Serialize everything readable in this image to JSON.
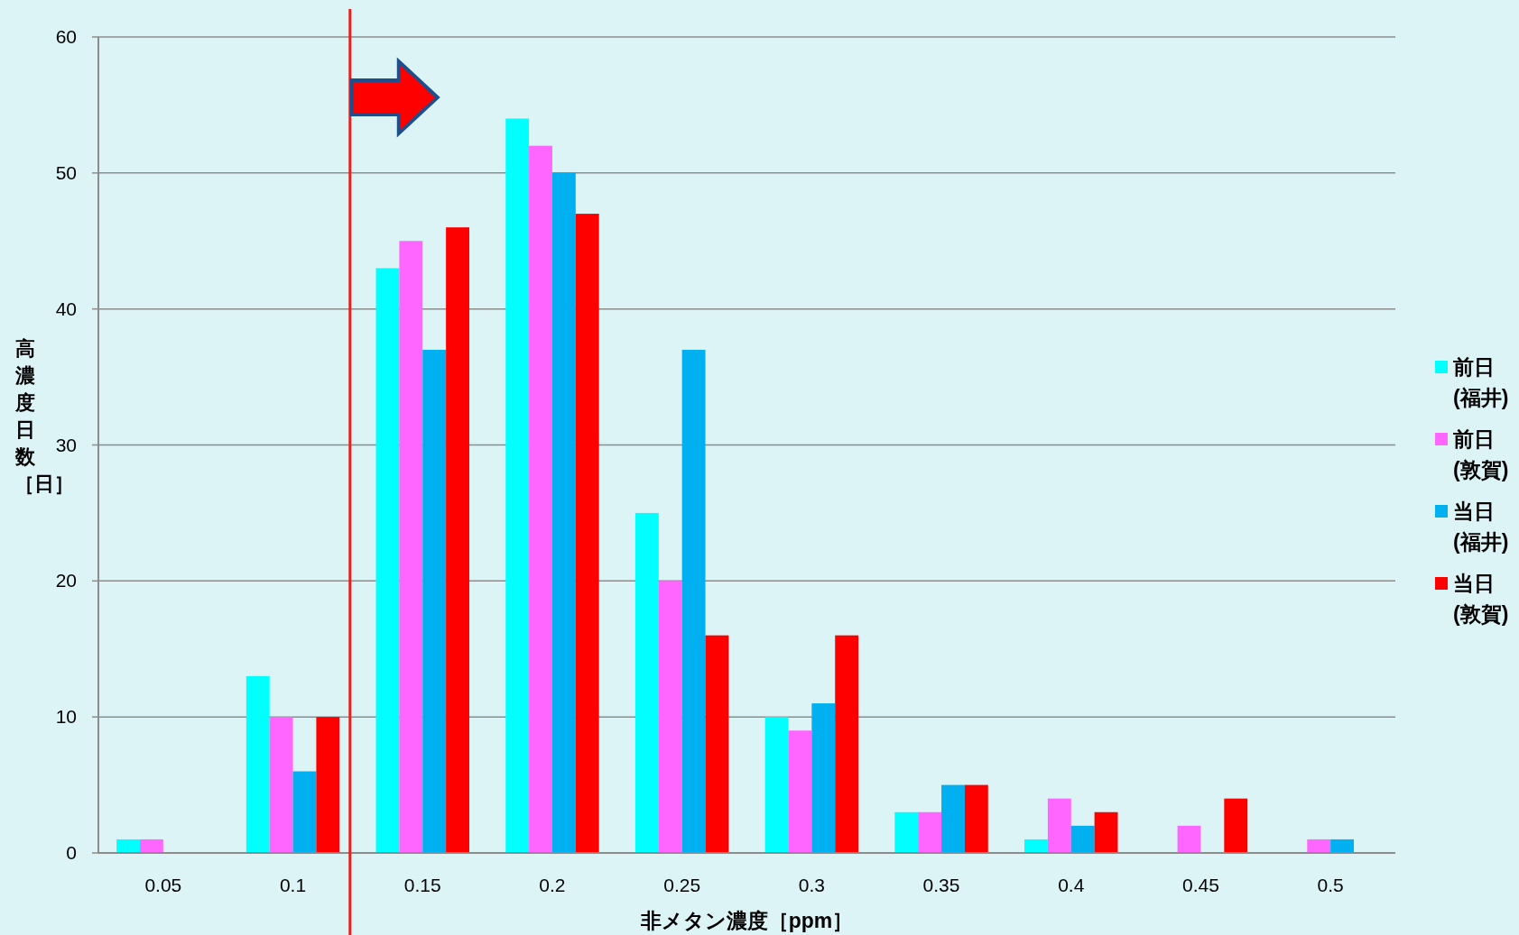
{
  "chart_data": {
    "type": "bar",
    "xlabel": "非メタン濃度［ppm］",
    "ylabel": "高濃度日数［日］",
    "x": [
      0.05,
      0.1,
      0.15,
      0.2,
      0.25,
      0.3,
      0.35,
      0.4,
      0.45,
      0.5
    ],
    "xlim": [
      0.025,
      0.525
    ],
    "xticks": [
      0.05,
      0.1,
      0.15,
      0.2,
      0.25,
      0.3,
      0.35,
      0.4,
      0.45,
      0.5
    ],
    "ylim": [
      0,
      60
    ],
    "yticks": [
      0,
      10,
      20,
      30,
      40,
      50,
      60
    ],
    "grid": "y",
    "legend": "right",
    "series": [
      {
        "name": "前日(福井)",
        "color": "#00ffff",
        "values": [
          1,
          13,
          43,
          54,
          25,
          10,
          3,
          1,
          0,
          0
        ]
      },
      {
        "name": "前日(敦賀)",
        "color": "#ff66ff",
        "values": [
          1,
          10,
          45,
          52,
          20,
          9,
          3,
          4,
          2,
          1
        ]
      },
      {
        "name": "当日(福井)",
        "color": "#00b0f0",
        "values": [
          0,
          6,
          37,
          50,
          37,
          11,
          5,
          2,
          0,
          1
        ]
      },
      {
        "name": "当日(敦賀)",
        "color": "#ff0000",
        "values": [
          0,
          10,
          46,
          47,
          16,
          16,
          5,
          3,
          4,
          0
        ]
      }
    ],
    "ref_lines": [
      {
        "axis": "x",
        "value": 0.122,
        "color": "#e8201c"
      }
    ]
  }
}
